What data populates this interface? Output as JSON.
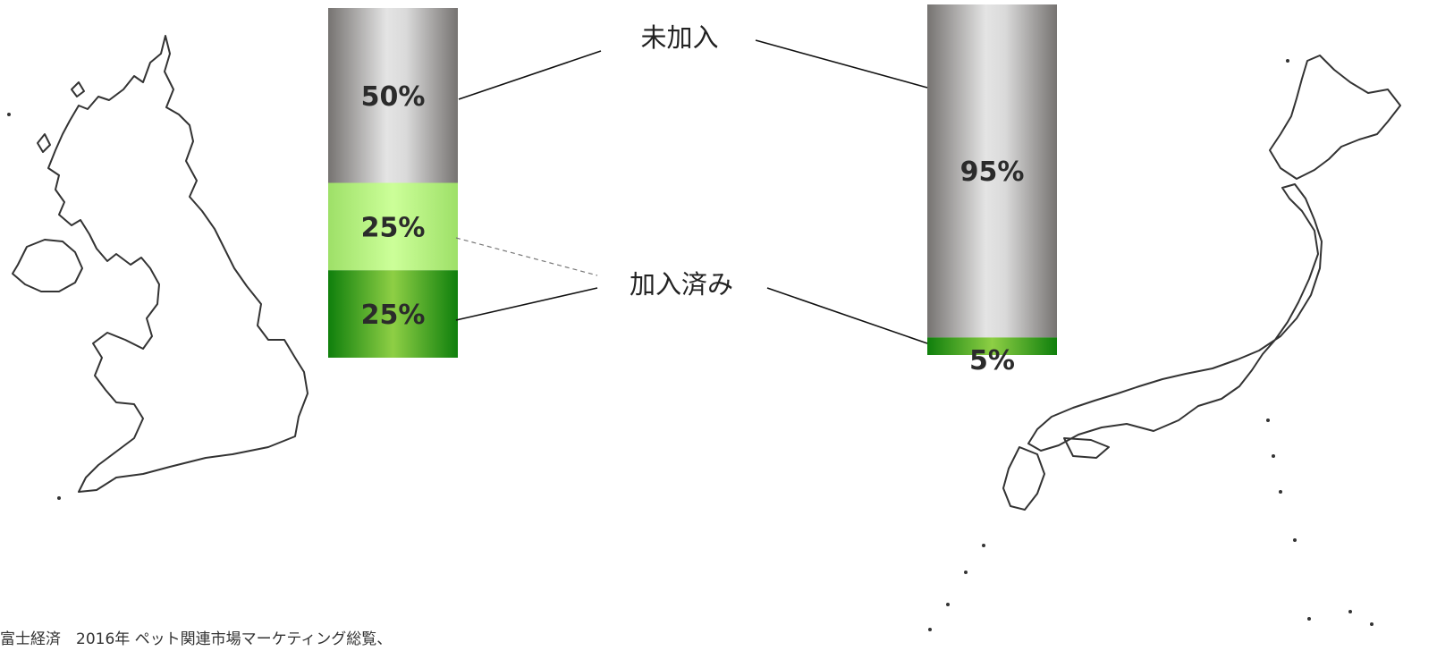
{
  "chart_data": [
    {
      "type": "bar",
      "stacked": true,
      "categories": [
        ""
      ],
      "series": [
        {
          "name": "未加入",
          "values": [
            50
          ],
          "label": "50%",
          "color": "#9a9896"
        },
        {
          "name": "加入済み (light)",
          "values": [
            25
          ],
          "label": "25%",
          "color": "#b8ec85"
        },
        {
          "name": "加入済み (dark)",
          "values": [
            25
          ],
          "label": "25%",
          "color": "#1a8a12"
        }
      ],
      "ylim": [
        0,
        100
      ]
    },
    {
      "type": "bar",
      "stacked": true,
      "categories": [
        ""
      ],
      "series": [
        {
          "name": "未加入",
          "values": [
            95
          ],
          "label": "95%",
          "color": "#9a9896"
        },
        {
          "name": "加入済み",
          "values": [
            5
          ],
          "label": "5%",
          "color": "#1a8a12"
        }
      ],
      "ylim": [
        0,
        100
      ]
    }
  ],
  "callouts": {
    "unenrolled": "未加入",
    "enrolled": "加入済み"
  },
  "source_note": "富士経済　2016年 ペット関連市場マーケティング総覧、",
  "maps": {
    "left": "uk-map-icon",
    "right": "japan-map-icon"
  }
}
